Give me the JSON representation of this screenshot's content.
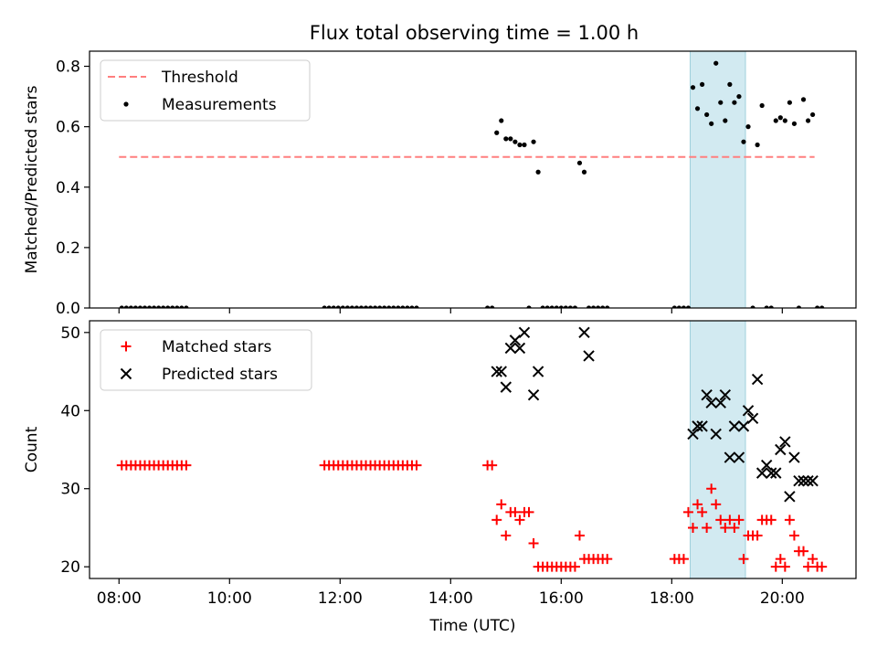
{
  "title": "Flux total observing time = 1.00 h",
  "colors": {
    "threshold": "#ff7f7f",
    "measurement": "#000000",
    "matched": "#ff0000",
    "predicted": "#000000",
    "highlight": "#add8e6"
  },
  "chart_data": [
    {
      "type": "scatter",
      "xlabel": "",
      "ylabel": "Matched/Predicted stars",
      "ylim": [
        0,
        0.85
      ],
      "xlim": [
        "07:28",
        "21:20"
      ],
      "y_ticks": [
        "0.0",
        "0.2",
        "0.4",
        "0.6",
        "0.8"
      ],
      "x_ticks": [
        "08:00",
        "10:00",
        "12:00",
        "14:00",
        "16:00",
        "18:00",
        "20:00"
      ],
      "show_x_tick_labels": false,
      "highlight_span": [
        "18:20",
        "19:20"
      ],
      "legend": {
        "placement": "upper-left",
        "entries": [
          "Threshold",
          "Measurements"
        ]
      },
      "series": [
        {
          "name": "Threshold",
          "style": "dashed-line",
          "x": [
            "08:00",
            "20:35"
          ],
          "y": [
            0.5,
            0.5
          ]
        },
        {
          "name": "Measurements",
          "style": "dot",
          "x": [
            "08:03",
            "08:08",
            "08:13",
            "08:18",
            "08:23",
            "08:28",
            "08:33",
            "08:38",
            "08:43",
            "08:48",
            "08:53",
            "08:58",
            "09:03",
            "09:08",
            "09:13",
            "11:43",
            "11:48",
            "11:53",
            "11:58",
            "12:03",
            "12:08",
            "12:13",
            "12:18",
            "12:23",
            "12:28",
            "12:33",
            "12:38",
            "12:43",
            "12:48",
            "12:53",
            "12:58",
            "13:03",
            "13:08",
            "13:13",
            "13:18",
            "13:23",
            "14:40",
            "14:45",
            "14:50",
            "14:55",
            "15:00",
            "15:05",
            "15:10",
            "15:15",
            "15:20",
            "15:25",
            "15:30",
            "15:35",
            "15:40",
            "15:45",
            "15:50",
            "15:55",
            "16:00",
            "16:05",
            "16:10",
            "16:15",
            "16:20",
            "16:25",
            "16:30",
            "16:35",
            "16:40",
            "16:45",
            "16:50",
            "18:03",
            "18:08",
            "18:13",
            "18:18",
            "18:23",
            "18:28",
            "18:33",
            "18:38",
            "18:43",
            "18:48",
            "18:53",
            "18:58",
            "19:03",
            "19:08",
            "19:13",
            "19:18",
            "19:23",
            "19:28",
            "19:33",
            "19:38",
            "19:43",
            "19:48",
            "19:53",
            "19:58",
            "20:03",
            "20:08",
            "20:13",
            "20:18",
            "20:23",
            "20:28",
            "20:33",
            "20:38",
            "20:43"
          ],
          "y": [
            0,
            0,
            0,
            0,
            0,
            0,
            0,
            0,
            0,
            0,
            0,
            0,
            0,
            0,
            0,
            0,
            0,
            0,
            0,
            0,
            0,
            0,
            0,
            0,
            0,
            0,
            0,
            0,
            0,
            0,
            0,
            0,
            0,
            0,
            0,
            0,
            0,
            0,
            0.58,
            0.62,
            0.56,
            0.56,
            0.55,
            0.54,
            0.54,
            0,
            0.55,
            0.45,
            0,
            0,
            0,
            0,
            0,
            0,
            0,
            0,
            0.48,
            0.45,
            0,
            0,
            0,
            0,
            0,
            0,
            0,
            0,
            0,
            0.73,
            0.66,
            0.74,
            0.64,
            0.61,
            0.81,
            0.68,
            0.62,
            0.74,
            0.68,
            0.7,
            0.55,
            0.6,
            0,
            0.54,
            0.67,
            0,
            0,
            0.62,
            0.63,
            0.62,
            0.68,
            0.61,
            0,
            0.69,
            0.62,
            0.64,
            0,
            0
          ]
        }
      ]
    },
    {
      "type": "scatter",
      "xlabel": "Time (UTC)",
      "ylabel": "Count",
      "ylim": [
        18.5,
        51.5
      ],
      "xlim": [
        "07:28",
        "21:20"
      ],
      "y_ticks": [
        "20",
        "30",
        "40",
        "50"
      ],
      "x_ticks": [
        "08:00",
        "10:00",
        "12:00",
        "14:00",
        "16:00",
        "18:00",
        "20:00"
      ],
      "highlight_span": [
        "18:20",
        "19:20"
      ],
      "legend": {
        "placement": "upper-left",
        "entries": [
          "Matched stars",
          "Predicted stars"
        ]
      },
      "series": [
        {
          "name": "Matched stars",
          "style": "plus",
          "x": [
            "08:03",
            "08:08",
            "08:13",
            "08:18",
            "08:23",
            "08:28",
            "08:33",
            "08:38",
            "08:43",
            "08:48",
            "08:53",
            "08:58",
            "09:03",
            "09:08",
            "09:13",
            "11:43",
            "11:48",
            "11:53",
            "11:58",
            "12:03",
            "12:08",
            "12:13",
            "12:18",
            "12:23",
            "12:28",
            "12:33",
            "12:38",
            "12:43",
            "12:48",
            "12:53",
            "12:58",
            "13:03",
            "13:08",
            "13:13",
            "13:18",
            "13:23",
            "14:40",
            "14:45",
            "14:50",
            "14:55",
            "15:00",
            "15:05",
            "15:10",
            "15:15",
            "15:20",
            "15:25",
            "15:30",
            "15:35",
            "15:40",
            "15:45",
            "15:50",
            "15:55",
            "16:00",
            "16:05",
            "16:10",
            "16:15",
            "16:20",
            "16:25",
            "16:30",
            "16:35",
            "16:40",
            "16:45",
            "16:50",
            "18:03",
            "18:08",
            "18:13",
            "18:18",
            "18:23",
            "18:28",
            "18:33",
            "18:38",
            "18:43",
            "18:48",
            "18:53",
            "18:58",
            "19:03",
            "19:08",
            "19:13",
            "19:18",
            "19:23",
            "19:28",
            "19:33",
            "19:38",
            "19:43",
            "19:48",
            "19:53",
            "19:58",
            "20:03",
            "20:08",
            "20:13",
            "20:18",
            "20:23",
            "20:28",
            "20:33",
            "20:38",
            "20:43"
          ],
          "y": [
            33,
            33,
            33,
            33,
            33,
            33,
            33,
            33,
            33,
            33,
            33,
            33,
            33,
            33,
            33,
            33,
            33,
            33,
            33,
            33,
            33,
            33,
            33,
            33,
            33,
            33,
            33,
            33,
            33,
            33,
            33,
            33,
            33,
            33,
            33,
            33,
            33,
            33,
            26,
            28,
            24,
            27,
            27,
            26,
            27,
            27,
            23,
            20,
            20,
            20,
            20,
            20,
            20,
            20,
            20,
            20,
            24,
            21,
            21,
            21,
            21,
            21,
            21,
            21,
            21,
            21,
            27,
            25,
            28,
            27,
            25,
            30,
            28,
            26,
            25,
            26,
            25,
            26,
            21,
            24,
            24,
            24,
            26,
            26,
            26,
            20,
            21,
            20,
            26,
            24,
            22,
            22,
            20,
            21,
            20,
            20
          ]
        },
        {
          "name": "Predicted stars",
          "style": "x",
          "x": [
            "14:50",
            "14:55",
            "15:00",
            "15:05",
            "15:10",
            "15:15",
            "15:20",
            "15:30",
            "15:35",
            "16:25",
            "16:30",
            "18:23",
            "18:28",
            "18:33",
            "18:38",
            "18:43",
            "18:48",
            "18:53",
            "18:58",
            "19:03",
            "19:08",
            "19:13",
            "19:18",
            "19:23",
            "19:28",
            "19:33",
            "19:38",
            "19:43",
            "19:48",
            "19:53",
            "19:58",
            "20:03",
            "20:08",
            "20:13",
            "20:18",
            "20:23",
            "20:28",
            "20:33"
          ],
          "y": [
            45,
            45,
            43,
            48,
            49,
            48,
            50,
            42,
            45,
            50,
            47,
            37,
            38,
            38,
            42,
            41,
            37,
            41,
            42,
            34,
            38,
            34,
            38,
            40,
            39,
            44,
            32,
            33,
            32,
            32,
            35,
            36,
            29,
            34,
            31,
            31,
            31,
            31
          ]
        }
      ]
    }
  ]
}
